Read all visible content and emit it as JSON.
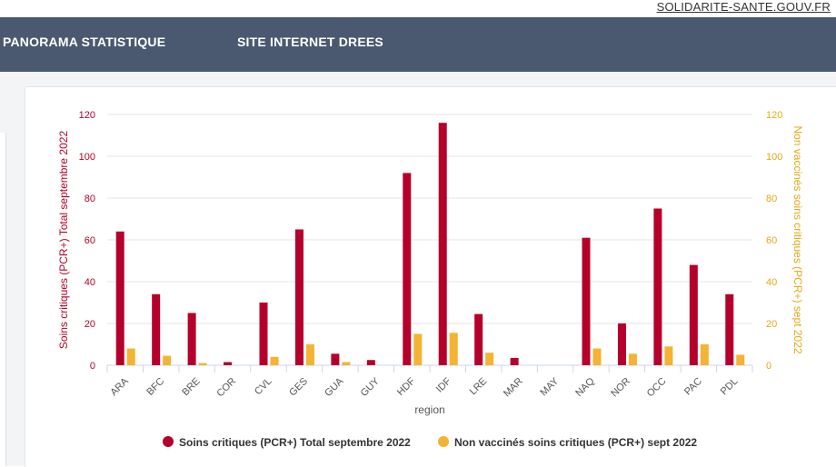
{
  "header": {
    "top_link": "SOLIDARITE-SANTE.GOUV.FR",
    "nav_items": [
      "PANORAMA STATISTIQUE",
      "SITE INTERNET DREES"
    ]
  },
  "colors": {
    "navbar": "#4a596f",
    "series_total": "#b5002b",
    "series_unvax": "#f4b332"
  },
  "chart_data": {
    "type": "bar",
    "xlabel": "region",
    "ylabel_left": "Soins critiques (PCR+) Total septembre 2022",
    "ylabel_right": "Non vaccinés soins critiques (PCR+) sept 2022",
    "ylim": [
      0,
      120
    ],
    "yticks": [
      0,
      20,
      40,
      60,
      80,
      100,
      120
    ],
    "grid": true,
    "legend_position": "bottom-center",
    "categories": [
      "ARA",
      "BFC",
      "BRE",
      "COR",
      "CVL",
      "GES",
      "GUA",
      "GUY",
      "HDF",
      "IDF",
      "LRE",
      "MAR",
      "MAY",
      "NAQ",
      "NOR",
      "OCC",
      "PAC",
      "PDL"
    ],
    "series": [
      {
        "name": "Soins critiques (PCR+) Total septembre 2022",
        "color": "#b5002b",
        "axis": "left",
        "values": [
          64,
          34,
          25,
          1.5,
          30,
          65,
          5.5,
          2.5,
          92,
          116,
          24.5,
          3.5,
          0,
          61,
          20,
          75,
          48,
          34
        ]
      },
      {
        "name": "Non vaccinés soins critiques (PCR+) sept 2022",
        "color": "#f4b332",
        "axis": "right",
        "values": [
          8,
          4.5,
          1,
          0,
          4,
          10,
          1.5,
          0,
          15,
          15.5,
          6,
          0,
          0,
          8,
          5.5,
          9,
          10,
          5
        ]
      }
    ]
  }
}
